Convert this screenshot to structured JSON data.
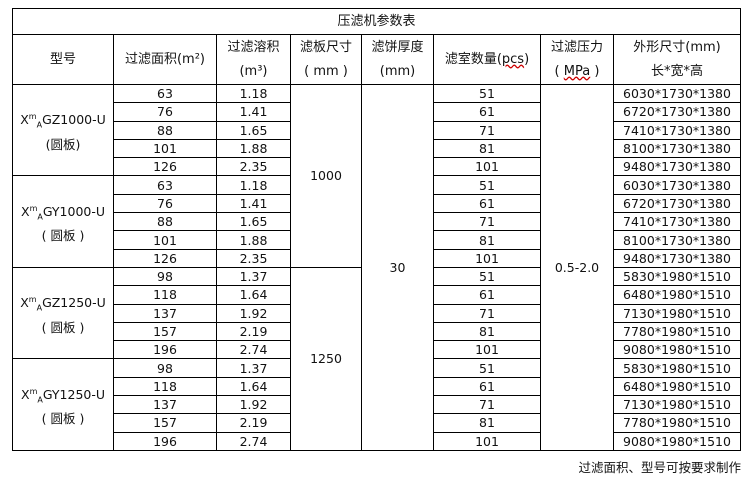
{
  "title": "压滤机参数表",
  "headers": {
    "model": "型号",
    "area": "过滤面积(m²)",
    "volume_1": "过滤溶积",
    "volume_2": "(m³)",
    "plate_1": "滤板尺寸",
    "plate_2": "( mm )",
    "cake_1": "滤饼厚度",
    "cake_2": "(mm)",
    "chambers_pre": "滤室数量(",
    "chambers_unit": "pcs",
    "chambers_post": ")",
    "pressure_1": "过滤压力",
    "pressure_pre": "( ",
    "pressure_unit": "MPa",
    "pressure_post": " )",
    "dims_1": "外形尺寸(mm)",
    "dims_2": "长*宽*高"
  },
  "groups": [
    {
      "model_x": "X",
      "model_m": "m",
      "model_a": "A",
      "model_rest": "GZ1000-U",
      "model_sub": "(圆板)"
    },
    {
      "model_x": "X",
      "model_m": "m",
      "model_a": "A",
      "model_rest": "GY1000-U",
      "model_sub": "( 圆板 )"
    },
    {
      "model_x": "X",
      "model_m": "m",
      "model_a": "A",
      "model_rest": "GZ1250-U",
      "model_sub": "( 圆板 )"
    },
    {
      "model_x": "X",
      "model_m": "m",
      "model_a": "A",
      "model_rest": "GY1250-U",
      "model_sub": "( 圆板 )"
    }
  ],
  "plate_sizes": [
    "1000",
    "1250"
  ],
  "cake_thickness": "30",
  "pressure": "0.5-2.0",
  "rows": [
    [
      "63",
      "1.18",
      "51",
      "6030*1730*1380"
    ],
    [
      "76",
      "1.41",
      "61",
      "6720*1730*1380"
    ],
    [
      "88",
      "1.65",
      "71",
      "7410*1730*1380"
    ],
    [
      "101",
      "1.88",
      "81",
      "8100*1730*1380"
    ],
    [
      "126",
      "2.35",
      "101",
      "9480*1730*1380"
    ],
    [
      "63",
      "1.18",
      "51",
      "6030*1730*1380"
    ],
    [
      "76",
      "1.41",
      "61",
      "6720*1730*1380"
    ],
    [
      "88",
      "1.65",
      "71",
      "7410*1730*1380"
    ],
    [
      "101",
      "1.88",
      "81",
      "8100*1730*1380"
    ],
    [
      "126",
      "2.35",
      "101",
      "9480*1730*1380"
    ],
    [
      "98",
      "1.37",
      "51",
      "5830*1980*1510"
    ],
    [
      "118",
      "1.64",
      "61",
      "6480*1980*1510"
    ],
    [
      "137",
      "1.92",
      "71",
      "7130*1980*1510"
    ],
    [
      "157",
      "2.19",
      "81",
      "7780*1980*1510"
    ],
    [
      "196",
      "2.74",
      "101",
      "9080*1980*1510"
    ],
    [
      "98",
      "1.37",
      "51",
      "5830*1980*1510"
    ],
    [
      "118",
      "1.64",
      "61",
      "6480*1980*1510"
    ],
    [
      "137",
      "1.92",
      "71",
      "7130*1980*1510"
    ],
    [
      "157",
      "2.19",
      "81",
      "7780*1980*1510"
    ],
    [
      "196",
      "2.74",
      "101",
      "9080*1980*1510"
    ]
  ],
  "note": "过滤面积、型号可按要求制作"
}
